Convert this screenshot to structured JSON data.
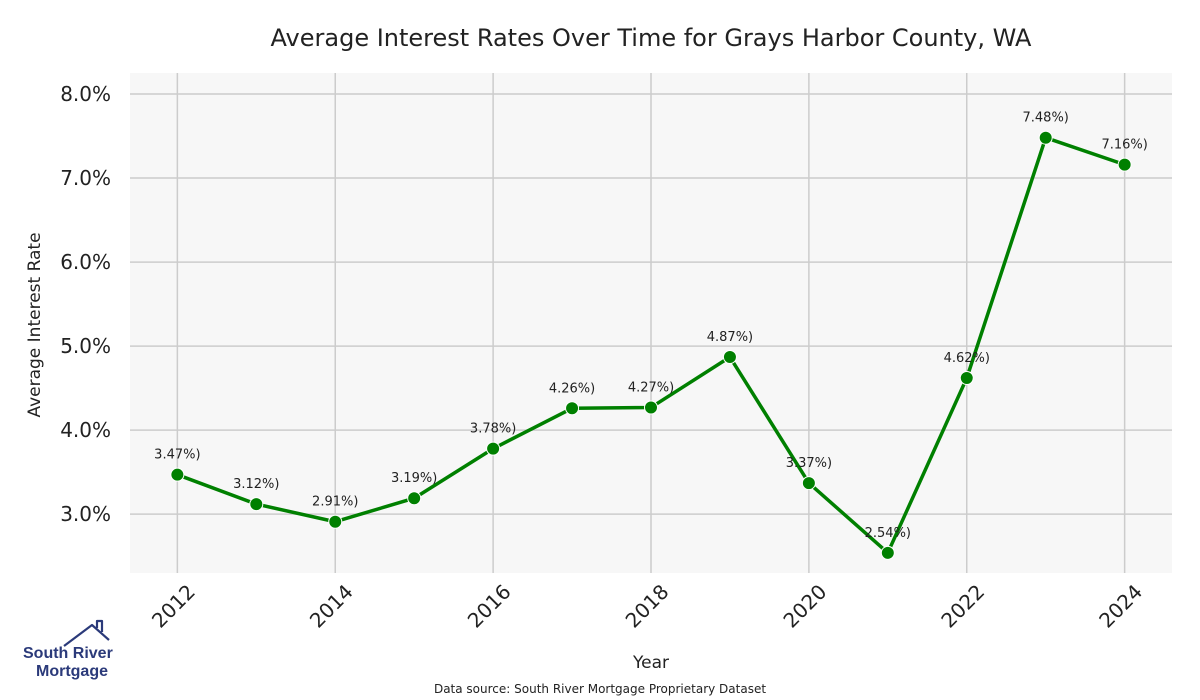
{
  "chart_data": {
    "type": "line",
    "title": "Average Interest Rates Over Time for Grays Harbor County, WA",
    "xlabel": "Year",
    "ylabel": "Average Interest Rate",
    "x": [
      2012,
      2013,
      2014,
      2015,
      2016,
      2017,
      2018,
      2019,
      2020,
      2021,
      2022,
      2023,
      2024
    ],
    "series": [
      {
        "values": [
          3.47,
          3.12,
          2.91,
          3.19,
          3.78,
          4.26,
          4.27,
          4.87,
          3.37,
          2.54,
          4.62,
          7.48,
          7.16
        ],
        "labels": [
          "3.47%)",
          "3.12%)",
          "2.91%)",
          "3.19%)",
          "3.78%)",
          "4.26%)",
          "4.27%)",
          "4.87%)",
          "3.37%)",
          "2.54%)",
          "4.62%)",
          "7.48%)",
          "7.16%)"
        ],
        "color": "#008000"
      }
    ],
    "x_ticks": [
      "2012",
      "2014",
      "2016",
      "2018",
      "2020",
      "2022",
      "2024"
    ],
    "y_ticks": [
      3.0,
      4.0,
      5.0,
      6.0,
      7.0,
      8.0
    ],
    "y_tick_labels": [
      "3.0%",
      "4.0%",
      "5.0%",
      "6.0%",
      "7.0%",
      "8.0%"
    ],
    "xlim": [
      2011.4,
      2024.6
    ],
    "ylim": [
      2.3,
      8.25
    ],
    "grid": true,
    "background": "#f7f7f7",
    "grid_color": "#cccccc"
  },
  "source_note": "Data source: South River Mortgage Proprietary Dataset",
  "logo": {
    "line1": "South River",
    "line2": "Mortgage",
    "color": "#2b3a7a"
  }
}
